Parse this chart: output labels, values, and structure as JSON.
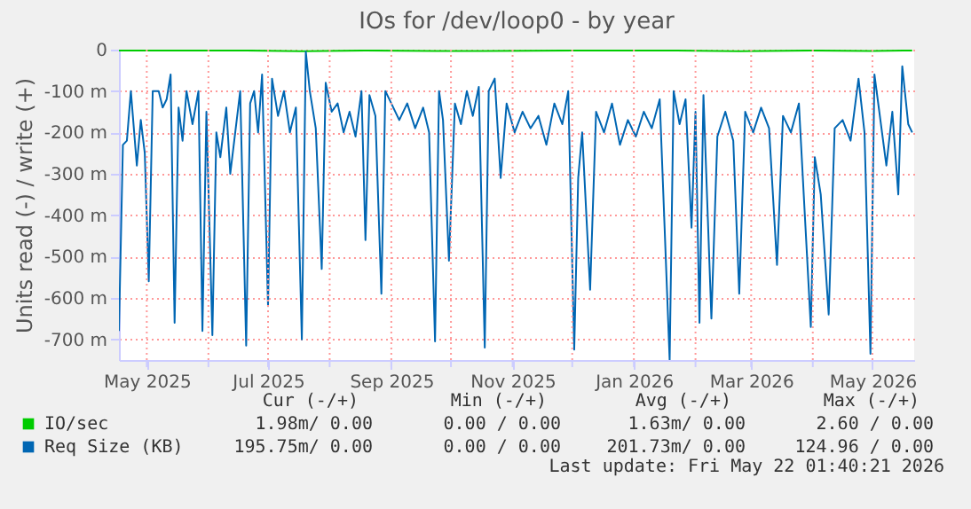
{
  "chart_data": {
    "type": "line",
    "title": "IOs for /dev/loop0 - by year",
    "ylabel": "Units read (-) / write (+)",
    "xlim": [
      "2025-04-17",
      "2026-05-22"
    ],
    "ylim": [
      -750,
      0
    ],
    "xticks": [
      {
        "value": "2025-05-01",
        "label": "May 2025"
      },
      {
        "value": "2025-06-01",
        "label": null
      },
      {
        "value": "2025-07-01",
        "label": "Jul 2025"
      },
      {
        "value": "2025-08-01",
        "label": null
      },
      {
        "value": "2025-09-01",
        "label": "Sep 2025"
      },
      {
        "value": "2025-10-01",
        "label": null
      },
      {
        "value": "2025-11-01",
        "label": "Nov 2025"
      },
      {
        "value": "2025-12-01",
        "label": null
      },
      {
        "value": "2026-01-01",
        "label": "Jan 2026"
      },
      {
        "value": "2026-02-01",
        "label": null
      },
      {
        "value": "2026-03-01",
        "label": "Mar 2026"
      },
      {
        "value": "2026-04-01",
        "label": null
      },
      {
        "value": "2026-05-01",
        "label": "May 2026"
      }
    ],
    "yticks": [
      0,
      {
        "value": -100,
        "label": "-100 m"
      },
      {
        "value": -200,
        "label": "-200 m"
      },
      {
        "value": -300,
        "label": "-300 m"
      },
      {
        "value": -400,
        "label": "-400 m"
      },
      {
        "value": -500,
        "label": "-500 m"
      },
      {
        "value": -600,
        "label": "-600 m"
      },
      {
        "value": -700,
        "label": "-700 m"
      }
    ],
    "grid": true,
    "legend": "bottom",
    "series": [
      {
        "name": "IO/sec",
        "color": "#00cc00",
        "x": [
          "2025-04-17",
          "2025-05-15",
          "2025-06-20",
          "2025-07-18",
          "2025-08-19",
          "2025-09-23",
          "2025-10-18",
          "2025-12-02",
          "2026-01-19",
          "2026-02-23",
          "2026-03-31",
          "2026-04-30",
          "2026-05-21"
        ],
        "values": [
          -2,
          -2,
          -2,
          -4,
          -2,
          -3,
          -3,
          -2,
          -2,
          -4,
          -2,
          -3,
          -2
        ]
      },
      {
        "name": "Req Size (KB)",
        "color": "#0066b3",
        "x": [
          "2025-04-17",
          "2025-04-19",
          "2025-04-21",
          "2025-04-23",
          "2025-04-26",
          "2025-04-28",
          "2025-04-30",
          "2025-05-02",
          "2025-05-04",
          "2025-05-07",
          "2025-05-09",
          "2025-05-11",
          "2025-05-13",
          "2025-05-15",
          "2025-05-17",
          "2025-05-19",
          "2025-05-21",
          "2025-05-24",
          "2025-05-27",
          "2025-05-29",
          "2025-05-31",
          "2025-06-03",
          "2025-06-05",
          "2025-06-07",
          "2025-06-10",
          "2025-06-12",
          "2025-06-14",
          "2025-06-17",
          "2025-06-20",
          "2025-06-22",
          "2025-06-24",
          "2025-06-26",
          "2025-06-28",
          "2025-07-01",
          "2025-07-03",
          "2025-07-06",
          "2025-07-09",
          "2025-07-12",
          "2025-07-15",
          "2025-07-18",
          "2025-07-20",
          "2025-07-22",
          "2025-07-25",
          "2025-07-28",
          "2025-07-30",
          "2025-08-02",
          "2025-08-05",
          "2025-08-08",
          "2025-08-11",
          "2025-08-14",
          "2025-08-17",
          "2025-08-19",
          "2025-08-21",
          "2025-08-24",
          "2025-08-27",
          "2025-08-29",
          "2025-09-01",
          "2025-09-05",
          "2025-09-09",
          "2025-09-13",
          "2025-09-17",
          "2025-09-20",
          "2025-09-23",
          "2025-09-25",
          "2025-09-27",
          "2025-09-30",
          "2025-10-03",
          "2025-10-06",
          "2025-10-09",
          "2025-10-12",
          "2025-10-15",
          "2025-10-18",
          "2025-10-20",
          "2025-10-23",
          "2025-10-26",
          "2025-10-29",
          "2025-11-02",
          "2025-11-06",
          "2025-11-10",
          "2025-11-14",
          "2025-11-18",
          "2025-11-22",
          "2025-11-26",
          "2025-11-29",
          "2025-12-02",
          "2025-12-04",
          "2025-12-06",
          "2025-12-10",
          "2025-12-13",
          "2025-12-17",
          "2025-12-21",
          "2025-12-25",
          "2025-12-29",
          "2026-01-02",
          "2026-01-06",
          "2026-01-10",
          "2026-01-14",
          "2026-01-19",
          "2026-01-21",
          "2026-01-24",
          "2026-01-27",
          "2026-01-30",
          "2026-02-01",
          "2026-02-03",
          "2026-02-05",
          "2026-02-09",
          "2026-02-12",
          "2026-02-16",
          "2026-02-20",
          "2026-02-23",
          "2026-02-26",
          "2026-03-02",
          "2026-03-06",
          "2026-03-10",
          "2026-03-14",
          "2026-03-17",
          "2026-03-21",
          "2026-03-25",
          "2026-03-31",
          "2026-04-02",
          "2026-04-05",
          "2026-04-09",
          "2026-04-12",
          "2026-04-16",
          "2026-04-20",
          "2026-04-24",
          "2026-04-27",
          "2026-04-30",
          "2026-05-02",
          "2026-05-05",
          "2026-05-08",
          "2026-05-11",
          "2026-05-14",
          "2026-05-16",
          "2026-05-19",
          "2026-05-21"
        ],
        "values": [
          -680,
          -230,
          -220,
          -100,
          -280,
          -170,
          -250,
          -560,
          -100,
          -100,
          -140,
          -120,
          -60,
          -660,
          -140,
          -220,
          -100,
          -180,
          -100,
          -680,
          -150,
          -690,
          -200,
          -260,
          -140,
          -300,
          -220,
          -100,
          -715,
          -130,
          -100,
          -200,
          -60,
          -620,
          -70,
          -160,
          -100,
          -200,
          -140,
          -700,
          -5,
          -100,
          -190,
          -530,
          -80,
          -150,
          -130,
          -200,
          -150,
          -210,
          -100,
          -460,
          -110,
          -160,
          -590,
          -100,
          -130,
          -170,
          -130,
          -190,
          -140,
          -200,
          -705,
          -100,
          -170,
          -510,
          -130,
          -180,
          -100,
          -160,
          -90,
          -720,
          -100,
          -70,
          -310,
          -130,
          -200,
          -150,
          -190,
          -160,
          -230,
          -130,
          -180,
          -100,
          -725,
          -310,
          -200,
          -580,
          -150,
          -200,
          -130,
          -230,
          -170,
          -210,
          -150,
          -190,
          -120,
          -750,
          -100,
          -180,
          -120,
          -430,
          -150,
          -660,
          -110,
          -650,
          -210,
          -150,
          -220,
          -590,
          -150,
          -200,
          -140,
          -190,
          -520,
          -160,
          -200,
          -130,
          -670,
          -260,
          -350,
          -640,
          -190,
          -170,
          -220,
          -70,
          -200,
          -735,
          -60,
          -170,
          -280,
          -150,
          -350,
          -40,
          -180,
          -200
        ]
      }
    ],
    "annotations": [
      "Cur (-/+)",
      "Min (-/+)",
      "Avg (-/+)",
      "Max (-/+)",
      "1.98m/  0.00",
      "0.00 /  0.00",
      "1.63m/  0.00",
      "2.60 /  0.00",
      "195.75m/  0.00",
      "0.00 /  0.00",
      "201.73m/  0.00",
      "124.96 /  0.00",
      "Last update: Fri May 22 01:40:21 2026"
    ]
  }
}
